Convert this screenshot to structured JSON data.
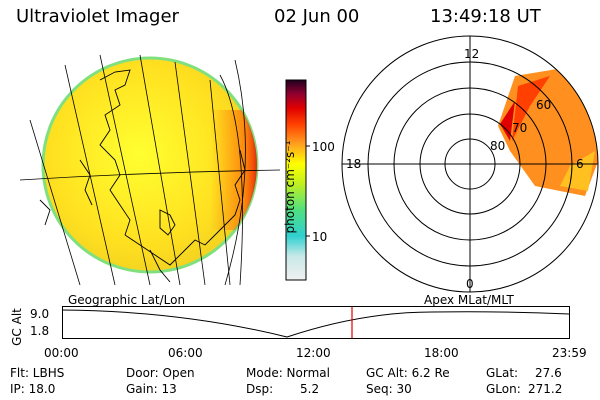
{
  "header": {
    "instrument": "Ultraviolet Imager",
    "date": "02 Jun 00",
    "time": "13:49:18 UT"
  },
  "globe_map": {
    "label": "Geographic Lat/Lon"
  },
  "color_scale": {
    "unit_label": "photon cm⁻²s⁻¹",
    "tick_labels": [
      "100",
      "10"
    ],
    "colors_bottom_to_top": [
      "#e8e8e8",
      "#30d0d0",
      "#50e080",
      "#c0f020",
      "#ffff00",
      "#ffa020",
      "#ff4000",
      "#e00000",
      "#900030",
      "#300020"
    ]
  },
  "polar_plot": {
    "label": "Apex MLat/MLT",
    "mlt_labels": [
      "12",
      "18",
      "6",
      "0"
    ],
    "mlat_labels": [
      "60",
      "70",
      "80"
    ]
  },
  "altitude_track": {
    "y_axis_label": "GC Alt",
    "y_ticks": [
      "9.0",
      "1.8"
    ],
    "x_ticks": [
      "00:00",
      "06:00",
      "12:00",
      "18:00",
      "23:59"
    ],
    "current_time_color": "#e00000"
  },
  "status": {
    "flt": "Flt: LBHS",
    "ip": "IP: 18.0",
    "door": "Door: Open",
    "gain": "Gain: 13",
    "mode": "Mode: Normal",
    "dsp_label": "Dsp:",
    "dsp_value": "5.2",
    "gc_alt": "GC Alt: 6.2 Re",
    "seq": "Seq: 30",
    "glat_label": "GLat:",
    "glat_value": "27.6",
    "glon_label": "GLon:",
    "glon_value": "271.2"
  }
}
